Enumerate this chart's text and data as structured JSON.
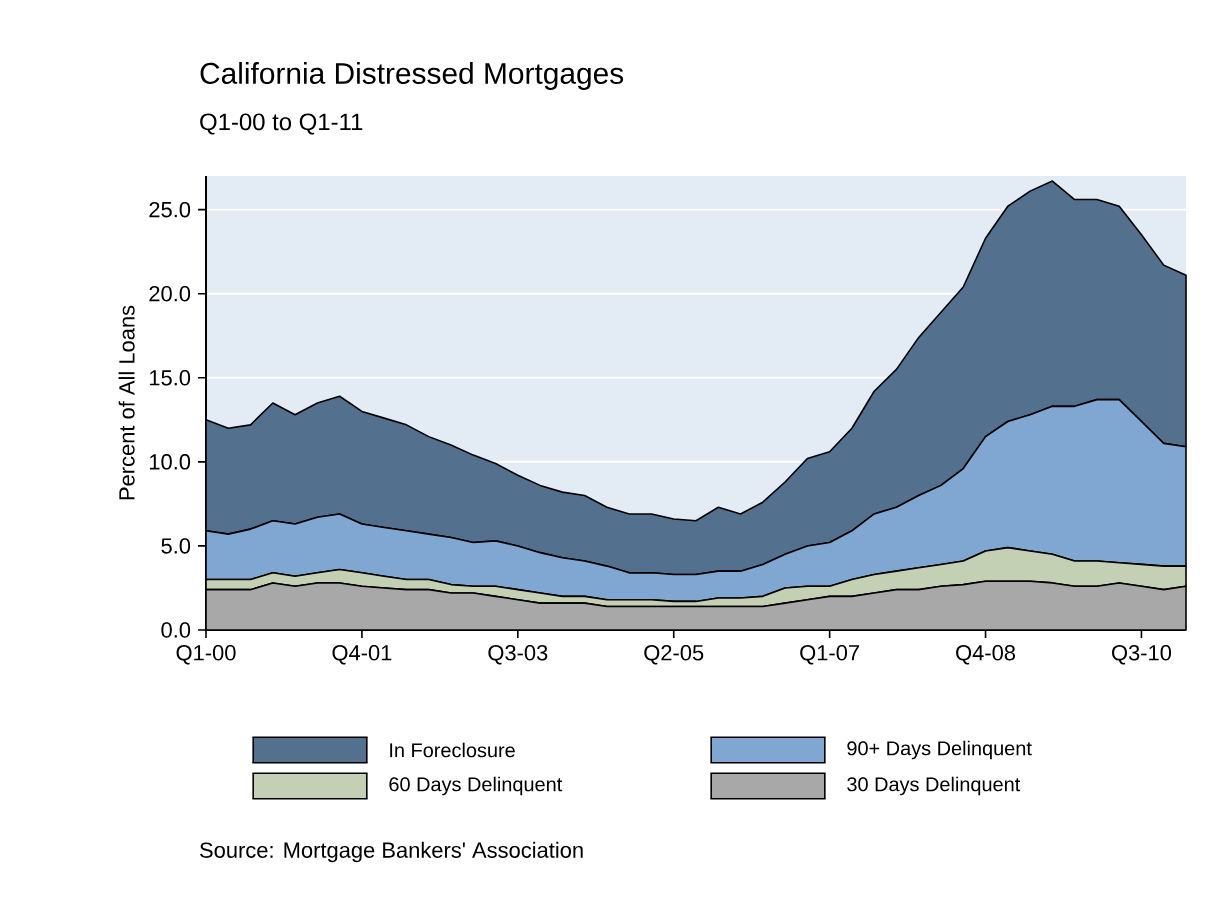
{
  "chart_data": {
    "type": "area",
    "stacked": true,
    "title": "California Distressed Mortgages",
    "subtitle": "Q1-00 to Q1-11",
    "ylabel": "Percent of All Loans",
    "categories": [
      "Q1-00",
      null,
      null,
      null,
      null,
      null,
      null,
      "Q4-01",
      null,
      null,
      null,
      null,
      null,
      null,
      "Q3-03",
      null,
      null,
      null,
      null,
      null,
      null,
      "Q2-05",
      null,
      null,
      null,
      null,
      null,
      null,
      "Q1-07",
      null,
      null,
      null,
      null,
      null,
      null,
      "Q4-08",
      null,
      null,
      null,
      null,
      null,
      null,
      "Q3-10",
      null,
      null
    ],
    "series": [
      {
        "name": "30 Days Delinquent",
        "color": "#a8a8a8",
        "values": [
          2.4,
          2.4,
          2.4,
          2.8,
          2.6,
          2.8,
          2.8,
          2.6,
          2.5,
          2.4,
          2.4,
          2.2,
          2.2,
          2.0,
          1.8,
          1.6,
          1.6,
          1.6,
          1.4,
          1.4,
          1.4,
          1.4,
          1.4,
          1.4,
          1.4,
          1.4,
          1.6,
          1.8,
          2.0,
          2.0,
          2.2,
          2.4,
          2.4,
          2.6,
          2.7,
          2.9,
          2.9,
          2.9,
          2.8,
          2.6,
          2.6,
          2.8,
          2.6,
          2.4,
          2.6
        ]
      },
      {
        "name": "60 Days Delinquent",
        "color": "#c3d0b3",
        "values": [
          0.6,
          0.6,
          0.6,
          0.6,
          0.6,
          0.6,
          0.8,
          0.8,
          0.7,
          0.6,
          0.6,
          0.5,
          0.4,
          0.6,
          0.6,
          0.6,
          0.4,
          0.4,
          0.4,
          0.4,
          0.4,
          0.3,
          0.3,
          0.5,
          0.5,
          0.6,
          0.9,
          0.8,
          0.6,
          1.0,
          1.1,
          1.1,
          1.3,
          1.3,
          1.4,
          1.8,
          2.0,
          1.8,
          1.7,
          1.5,
          1.5,
          1.2,
          1.3,
          1.4,
          1.2
        ]
      },
      {
        "name": "90+ Days Delinquent",
        "color": "#7fa7d1",
        "values": [
          2.9,
          2.7,
          3.0,
          3.1,
          3.1,
          3.3,
          3.3,
          2.9,
          2.9,
          2.9,
          2.7,
          2.8,
          2.6,
          2.7,
          2.6,
          2.4,
          2.3,
          2.1,
          2.0,
          1.6,
          1.6,
          1.6,
          1.6,
          1.6,
          1.6,
          1.9,
          2.0,
          2.4,
          2.6,
          2.9,
          3.6,
          3.8,
          4.3,
          4.7,
          5.5,
          6.8,
          7.5,
          8.1,
          8.8,
          9.2,
          9.6,
          9.7,
          8.5,
          7.3,
          7.1
        ]
      },
      {
        "name": "In Foreclosure",
        "color": "#54708f",
        "values": [
          6.6,
          6.3,
          6.2,
          7.0,
          6.5,
          6.8,
          7.0,
          6.7,
          6.5,
          6.3,
          5.8,
          5.5,
          5.2,
          4.6,
          4.2,
          4.0,
          3.9,
          3.9,
          3.5,
          3.5,
          3.5,
          3.3,
          3.2,
          3.8,
          3.4,
          3.7,
          4.3,
          5.2,
          5.4,
          6.1,
          7.3,
          8.2,
          9.4,
          10.3,
          10.8,
          11.8,
          12.8,
          13.3,
          13.4,
          12.3,
          11.9,
          11.5,
          11.1,
          10.6,
          10.2
        ]
      }
    ],
    "ylim": [
      0,
      27
    ],
    "yticks": [
      {
        "value": 0,
        "label": "0.0"
      },
      {
        "value": 5,
        "label": "5.0"
      },
      {
        "value": 10,
        "label": "10.0"
      },
      {
        "value": 15,
        "label": "15.0"
      },
      {
        "value": 20,
        "label": "20.0"
      },
      {
        "value": 25,
        "label": "25.0"
      }
    ],
    "grid": "y",
    "legend": "bottom",
    "annotations": [
      "Source: Mortgage Bankers' Association"
    ]
  }
}
